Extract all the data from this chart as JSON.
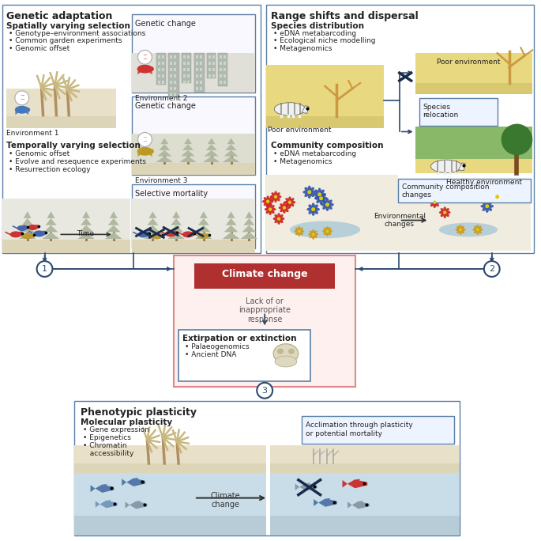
{
  "bg_color": "#ffffff",
  "panel_border_color": "#5b7fa6",
  "climate_box_color": "#b03030",
  "climate_text_color": "#ffffff",
  "red_outer_border": "#e09090",
  "arrow_color": "#2c4a6e",
  "circle_label_color": "#2c4a6e",
  "genetic_title": "Genetic adaptation",
  "spatially_title": "Spatially varying selection",
  "spatially_bullets": [
    "Genotype–environment associations",
    "Common garden experiments",
    "Genomic offset"
  ],
  "temporally_title": "Temporally varying selection",
  "temporally_bullets": [
    "Genomic offset",
    "Evolve and resequence experiments",
    "Resurrection ecology"
  ],
  "range_title": "Range shifts and dispersal",
  "species_dist_title": "Species distribution",
  "species_dist_bullets": [
    "eDNA metabarcoding",
    "Ecological niche modelling",
    "Metagenomics"
  ],
  "community_title": "Community composition",
  "community_bullets": [
    "eDNA metabarcoding",
    "Metagenomics"
  ],
  "climate_change_text": "Climate change",
  "lack_text": "Lack of or\ninappropriate\nresponse",
  "extinction_title": "Extirpation or extinction",
  "extinction_bullets": [
    "Palaeogenomics",
    "Ancient DNA"
  ],
  "phenotypic_title": "Phenotypic plasticity",
  "molecular_title": "Molecular plasticity",
  "molecular_bullets": [
    "Gene expression",
    "Epigenetics",
    "Chromatin\n  accessibility"
  ],
  "acclimation_text": "Acclimation through plasticity\nor potential mortality",
  "genetic_change_1": "Genetic change",
  "genetic_change_2": "Genetic change",
  "selective_mortality": "Selective mortality",
  "poor_env_text": "Poor environment",
  "healthy_env_text": "Healthy environment",
  "poor_env_left": "Poor environment",
  "species_relocation": "Species\nrelocation",
  "community_changes": "Community composition\nchanges",
  "env_changes": "Environmental\nchanges",
  "env1": "Environment 1",
  "env2": "Environment 2",
  "env3": "Environment 3",
  "time_label": "Time",
  "climate_change_label": "Climate\nchange",
  "sand_color": "#ddd5b8",
  "sand_light": "#e8e0c8",
  "green_color": "#88b868",
  "yellow_sand": "#e8d880",
  "water_color": "#a8c8d8",
  "fish_blue_dark": "#5577aa",
  "fish_blue_light": "#7799bb",
  "fish_red": "#cc3333",
  "fish_grey": "#8899aa",
  "flower_red": "#cc2222",
  "flower_blue": "#3355aa",
  "flower_yellow": "#cc9922",
  "bug_blue": "#4477bb",
  "bug_red": "#cc3333",
  "bug_yellow": "#bb9922",
  "mouse_blue": "#4466aa",
  "mouse_red": "#cc3333",
  "mouse_yellow": "#bb9933",
  "tree_trunk": "#9a7040",
  "tree_green": "#4a7a40",
  "palm_trunk": "#b09060",
  "palm_leaf": "#c8b880",
  "dead_tree": "#cc9940"
}
